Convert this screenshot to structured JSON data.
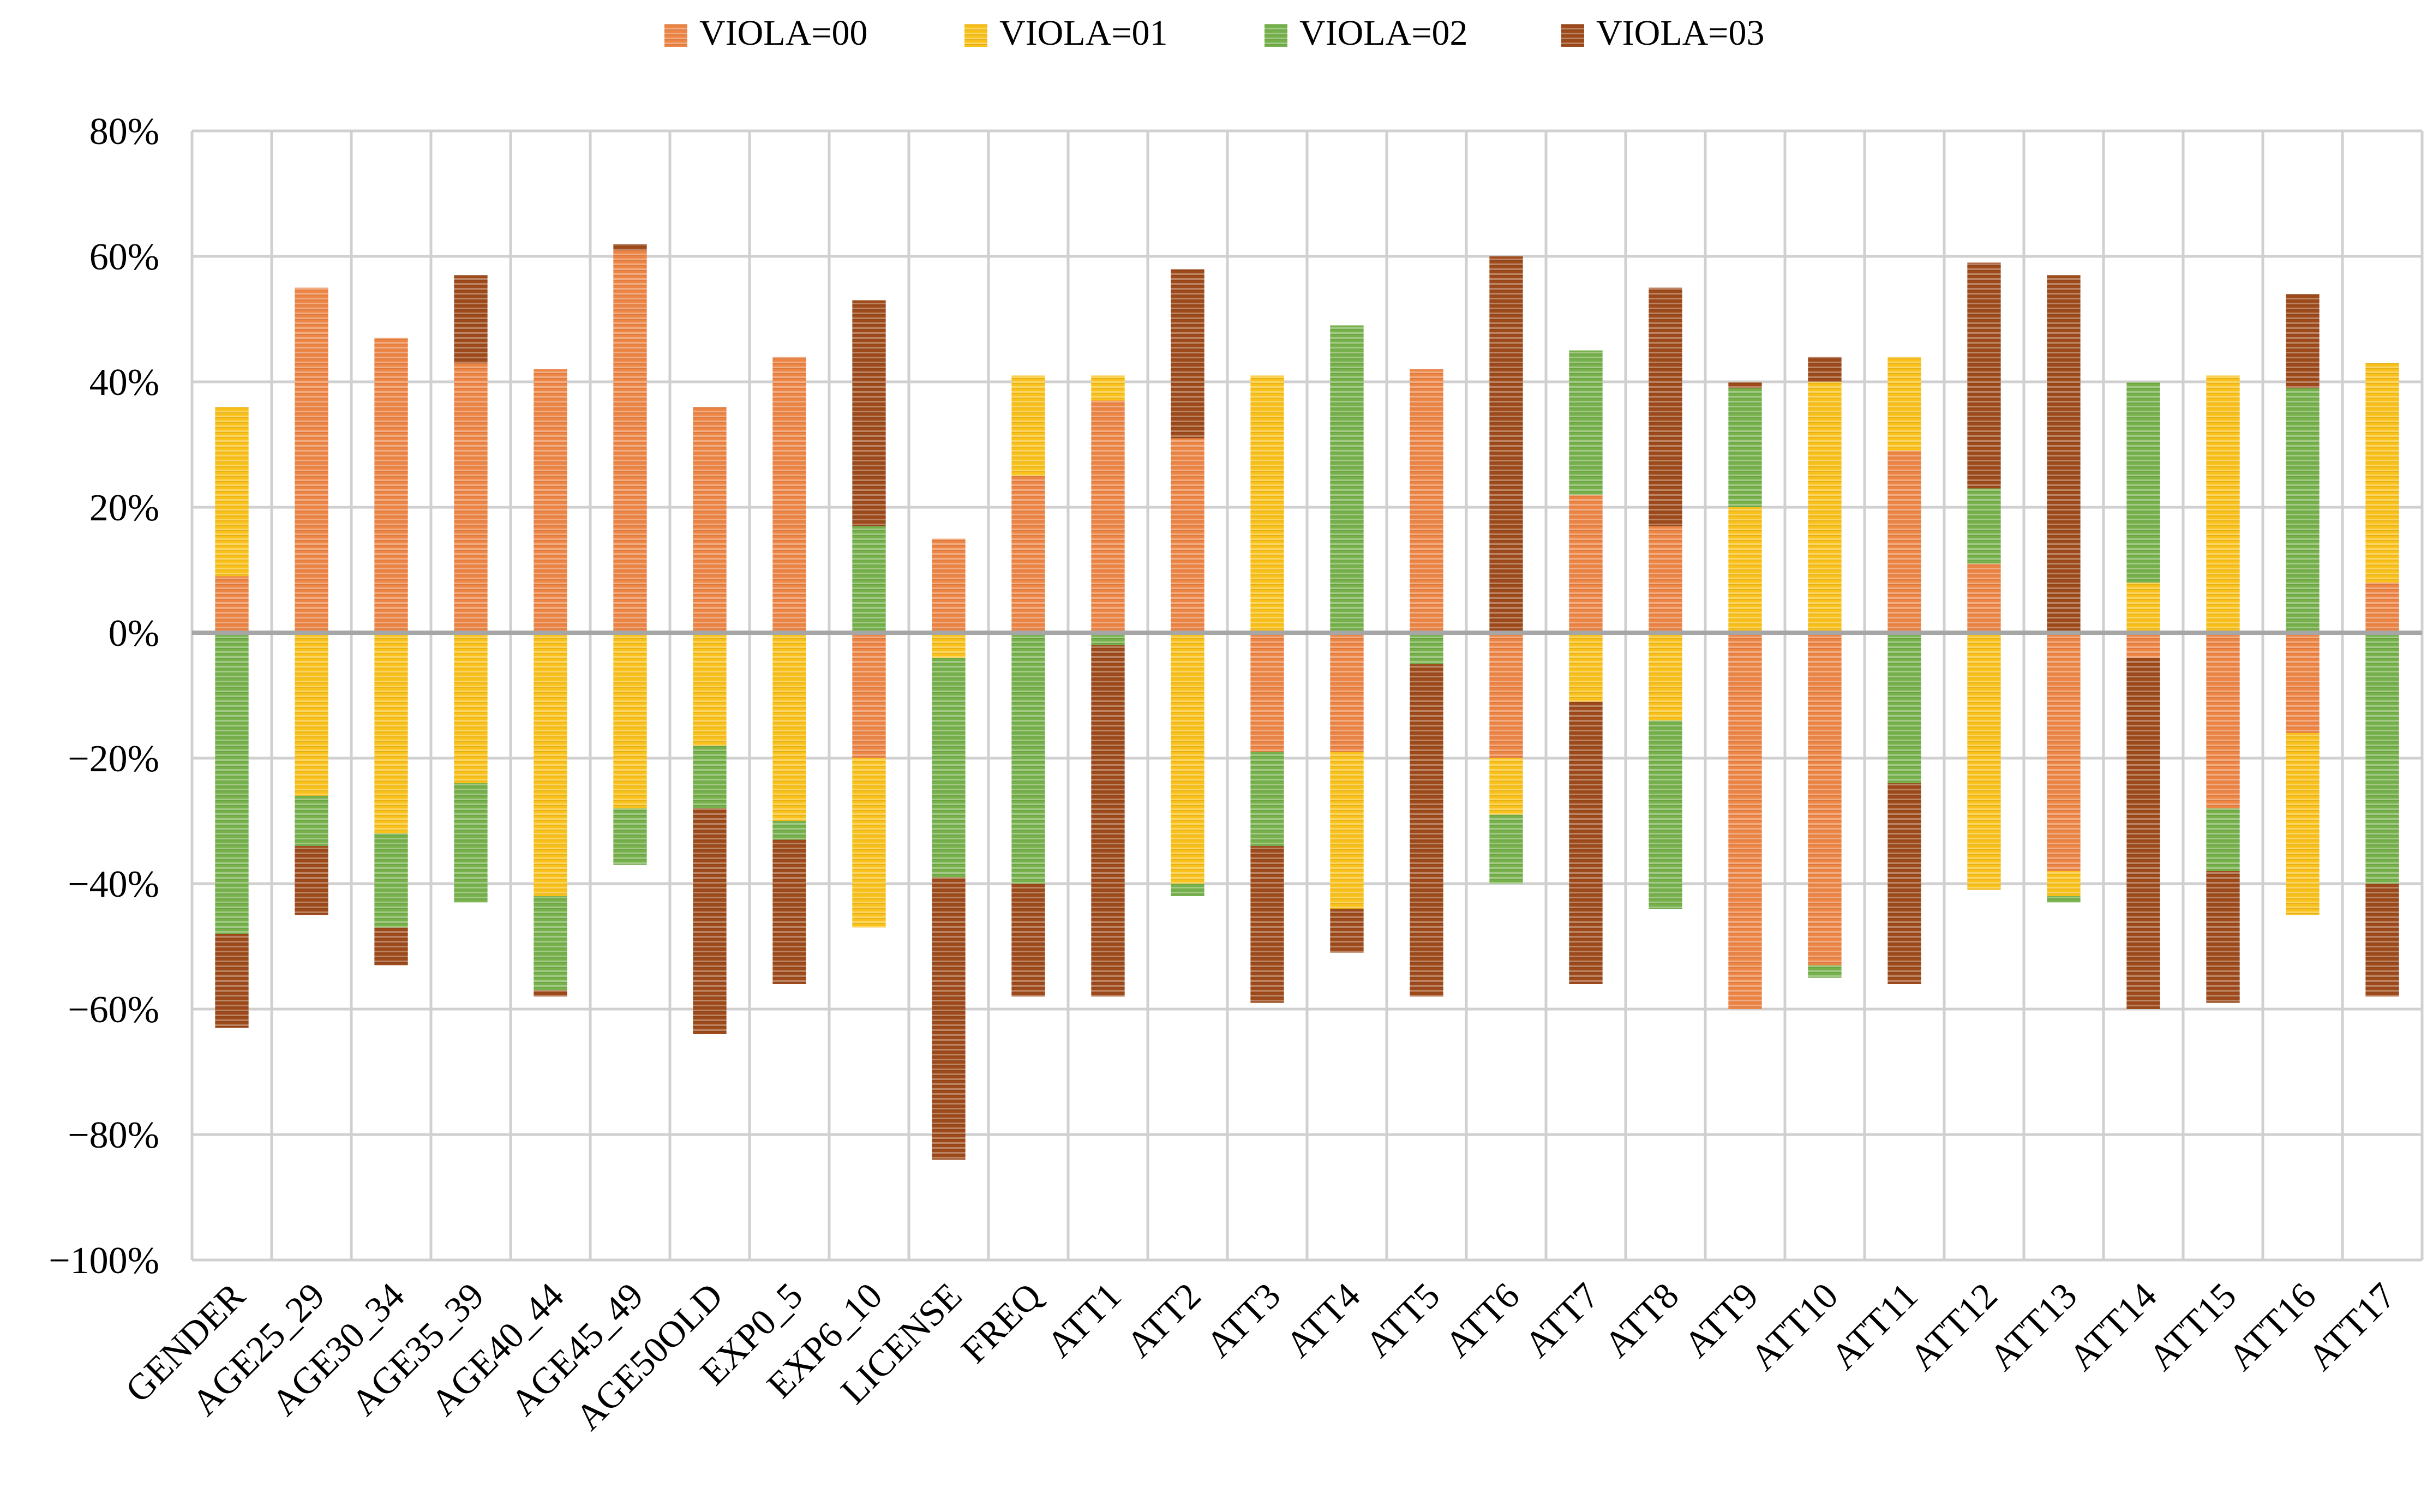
{
  "colors": {
    "VIOLA=00": "#ED8545",
    "VIOLA=01": "#F9C11A",
    "VIOLA=02": "#76B14B",
    "VIOLA=03": "#9E4A1B",
    "gridline": "#D0D0D0",
    "zero_line": "#A6A6A6"
  },
  "chart_data": {
    "type": "bar",
    "stacked": true,
    "title": "",
    "xlabel": "",
    "ylabel": "",
    "ylim": [
      -1.0,
      0.8
    ],
    "ytick_values": [
      0.8,
      0.6,
      0.4,
      0.2,
      0.0,
      -0.2,
      -0.4,
      -0.6,
      -0.8,
      -1.0
    ],
    "ytick_labels": [
      "80%",
      "60%",
      "40%",
      "20%",
      "0%",
      "−20%",
      "−40%",
      "−60%",
      "−80%",
      "−100%"
    ],
    "legend_position": "top",
    "grid": true,
    "legend": [
      "VIOLA=00",
      "VIOLA=01",
      "VIOLA=02",
      "VIOLA=03"
    ],
    "categories": [
      "GENDER",
      "AGE25_29",
      "AGE30_34",
      "AGE35_39",
      "AGE40_44",
      "AGE45_49",
      "AGE50OLD",
      "EXP0_5",
      "EXP6_10",
      "LICENSE",
      "FREQ",
      "ATT1",
      "ATT2",
      "ATT3",
      "ATT4",
      "ATT5",
      "ATT6",
      "ATT7",
      "ATT8",
      "ATT9",
      "ATT10",
      "ATT11",
      "ATT12",
      "ATT13",
      "ATT14",
      "ATT15",
      "ATT16",
      "ATT17"
    ],
    "series": [
      {
        "name": "VIOLA=00",
        "values": [
          0.09,
          0.55,
          0.47,
          0.43,
          0.42,
          0.61,
          0.36,
          0.44,
          -0.2,
          0.15,
          0.25,
          0.37,
          0.31,
          -0.19,
          -0.19,
          0.42,
          -0.2,
          0.22,
          0.17,
          -0.6,
          -0.53,
          0.29,
          0.11,
          -0.38,
          -0.04,
          -0.28,
          -0.16,
          0.08
        ]
      },
      {
        "name": "VIOLA=01",
        "values": [
          0.27,
          -0.26,
          -0.32,
          -0.24,
          -0.42,
          -0.28,
          -0.18,
          -0.3,
          -0.27,
          -0.04,
          0.16,
          0.04,
          -0.4,
          0.41,
          -0.25,
          0.0,
          -0.09,
          -0.11,
          -0.14,
          0.2,
          0.4,
          0.15,
          -0.41,
          -0.04,
          0.08,
          0.41,
          -0.29,
          0.35
        ]
      },
      {
        "name": "VIOLA=02",
        "values": [
          -0.48,
          -0.08,
          -0.15,
          -0.19,
          -0.15,
          -0.09,
          -0.1,
          -0.03,
          0.17,
          -0.35,
          -0.4,
          -0.02,
          -0.02,
          -0.15,
          0.49,
          -0.05,
          -0.11,
          0.23,
          -0.3,
          0.19,
          -0.02,
          -0.24,
          0.12,
          -0.01,
          0.32,
          -0.1,
          0.39,
          -0.4
        ]
      },
      {
        "name": "VIOLA=03",
        "values": [
          -0.15,
          -0.11,
          -0.06,
          0.14,
          -0.01,
          0.01,
          -0.36,
          -0.23,
          0.36,
          -0.45,
          -0.18,
          -0.56,
          0.27,
          -0.25,
          -0.07,
          -0.53,
          0.6,
          -0.45,
          0.38,
          0.01,
          0.04,
          -0.32,
          0.36,
          0.57,
          -0.56,
          -0.21,
          0.15,
          -0.18
        ]
      }
    ]
  }
}
